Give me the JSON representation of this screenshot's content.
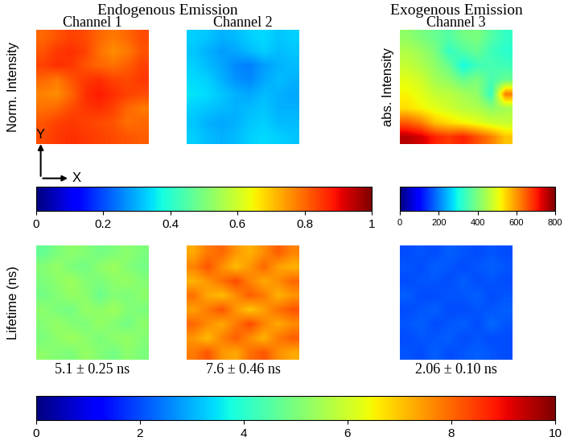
{
  "headers": [
    "Endogenous Emission",
    "Exogenous Emission"
  ],
  "chart_data": [
    {
      "type": "heatmap",
      "title": "Channel 1",
      "ylabel": "Norm. Intensity",
      "axis_arrows": [
        "X",
        "Y"
      ],
      "tick_labels": false,
      "clim": [
        0,
        1
      ],
      "cticks": [
        0,
        0.2,
        0.4,
        0.6,
        0.8,
        1
      ],
      "cells": [
        [
          0.8,
          0.82,
          0.84,
          0.83,
          0.8,
          0.78,
          0.8,
          0.83
        ],
        [
          0.82,
          0.85,
          0.86,
          0.84,
          0.79,
          0.76,
          0.78,
          0.82
        ],
        [
          0.84,
          0.86,
          0.85,
          0.82,
          0.8,
          0.79,
          0.81,
          0.84
        ],
        [
          0.8,
          0.78,
          0.82,
          0.85,
          0.86,
          0.84,
          0.83,
          0.85
        ],
        [
          0.77,
          0.76,
          0.8,
          0.86,
          0.88,
          0.86,
          0.84,
          0.83
        ],
        [
          0.79,
          0.8,
          0.83,
          0.85,
          0.86,
          0.84,
          0.8,
          0.78
        ],
        [
          0.82,
          0.84,
          0.85,
          0.84,
          0.83,
          0.82,
          0.79,
          0.8
        ],
        [
          0.83,
          0.85,
          0.86,
          0.85,
          0.84,
          0.83,
          0.82,
          0.81
        ]
      ]
    },
    {
      "type": "heatmap",
      "title": "Channel 2",
      "tick_labels": false,
      "clim": [
        0,
        1
      ],
      "cticks": [
        0,
        0.2,
        0.4,
        0.6,
        0.8,
        1
      ],
      "cells": [
        [
          0.33,
          0.32,
          0.3,
          0.31,
          0.33,
          0.34,
          0.32,
          0.33
        ],
        [
          0.32,
          0.3,
          0.28,
          0.29,
          0.31,
          0.33,
          0.31,
          0.32
        ],
        [
          0.33,
          0.31,
          0.29,
          0.26,
          0.25,
          0.28,
          0.3,
          0.31
        ],
        [
          0.34,
          0.33,
          0.3,
          0.27,
          0.26,
          0.29,
          0.31,
          0.3
        ],
        [
          0.35,
          0.34,
          0.32,
          0.3,
          0.29,
          0.31,
          0.3,
          0.29
        ],
        [
          0.33,
          0.32,
          0.31,
          0.3,
          0.31,
          0.32,
          0.3,
          0.3
        ],
        [
          0.32,
          0.3,
          0.29,
          0.3,
          0.32,
          0.33,
          0.31,
          0.31
        ],
        [
          0.33,
          0.31,
          0.3,
          0.31,
          0.33,
          0.34,
          0.33,
          0.32
        ]
      ]
    },
    {
      "type": "heatmap",
      "title": "Channel 3",
      "ylabel": "abs. Intensity",
      "tick_labels": false,
      "clim": [
        0,
        800
      ],
      "cticks": [
        0,
        200,
        400,
        600,
        800
      ],
      "cells": [
        [
          420,
          400,
          380,
          360,
          390,
          400,
          360,
          330
        ],
        [
          450,
          430,
          400,
          330,
          360,
          380,
          340,
          320
        ],
        [
          470,
          450,
          420,
          380,
          300,
          340,
          350,
          340
        ],
        [
          500,
          480,
          440,
          420,
          380,
          400,
          350,
          380
        ],
        [
          520,
          500,
          470,
          460,
          440,
          420,
          330,
          620
        ],
        [
          540,
          520,
          500,
          480,
          460,
          450,
          420,
          440
        ],
        [
          650,
          620,
          560,
          540,
          520,
          500,
          480,
          470
        ],
        [
          760,
          740,
          700,
          680,
          700,
          660,
          620,
          560
        ]
      ]
    },
    {
      "type": "heatmap",
      "ylabel": "Lifetime (ns)",
      "annotation": "5.1 ± 0.25 ns",
      "tick_labels": false,
      "clim": [
        0,
        10
      ],
      "cticks": [
        0,
        2,
        4,
        6,
        8,
        10
      ],
      "cells": [
        [
          4.7,
          5.0,
          5.2,
          5.1,
          4.9,
          5.0,
          5.2,
          5.0
        ],
        [
          5.1,
          5.3,
          5.0,
          4.9,
          5.2,
          5.4,
          5.1,
          4.9
        ],
        [
          5.0,
          5.2,
          5.4,
          5.1,
          5.0,
          5.2,
          5.3,
          5.1
        ],
        [
          4.9,
          5.1,
          5.3,
          5.2,
          4.8,
          5.1,
          5.0,
          5.2
        ],
        [
          5.2,
          5.0,
          4.9,
          5.3,
          5.2,
          5.4,
          5.1,
          5.0
        ],
        [
          5.1,
          5.3,
          5.1,
          5.0,
          5.3,
          5.1,
          4.9,
          5.2
        ],
        [
          5.0,
          5.2,
          5.4,
          5.2,
          5.0,
          5.2,
          5.3,
          5.1
        ],
        [
          5.2,
          5.1,
          5.0,
          5.3,
          5.1,
          4.9,
          5.2,
          5.0
        ]
      ]
    },
    {
      "type": "heatmap",
      "annotation": "7.6 ± 0.46 ns",
      "tick_labels": false,
      "clim": [
        0,
        10
      ],
      "cticks": [
        0,
        2,
        4,
        6,
        8,
        10
      ],
      "cells": [
        [
          7.3,
          7.8,
          8.0,
          7.5,
          7.2,
          7.6,
          8.1,
          7.7
        ],
        [
          7.7,
          8.2,
          7.6,
          7.1,
          7.5,
          8.0,
          7.4,
          7.2
        ],
        [
          7.2,
          7.5,
          7.9,
          8.3,
          7.7,
          7.3,
          7.6,
          8.0
        ],
        [
          7.9,
          7.3,
          7.1,
          7.6,
          8.1,
          7.8,
          7.2,
          7.5
        ],
        [
          7.4,
          7.8,
          8.2,
          7.5,
          7.0,
          7.4,
          7.9,
          8.2
        ],
        [
          8.0,
          7.6,
          7.3,
          7.8,
          8.3,
          7.7,
          7.3,
          7.6
        ],
        [
          7.5,
          7.1,
          7.7,
          8.1,
          7.6,
          7.2,
          7.8,
          8.1
        ],
        [
          7.8,
          8.2,
          7.5,
          7.3,
          7.9,
          8.2,
          7.6,
          7.3
        ]
      ]
    },
    {
      "type": "heatmap",
      "annotation": "2.06 ± 0.10 ns",
      "tick_labels": false,
      "clim": [
        0,
        10
      ],
      "cticks": [
        0,
        2,
        4,
        6,
        8,
        10
      ],
      "cells": [
        [
          2.0,
          2.1,
          2.0,
          2.2,
          2.1,
          2.0,
          2.1,
          2.0
        ],
        [
          2.1,
          2.0,
          2.2,
          2.1,
          2.0,
          2.1,
          2.2,
          2.1
        ],
        [
          2.0,
          2.1,
          2.1,
          2.0,
          2.2,
          2.0,
          2.1,
          2.0
        ],
        [
          2.2,
          2.0,
          2.0,
          2.1,
          2.1,
          2.2,
          2.0,
          2.1
        ],
        [
          2.0,
          2.1,
          2.2,
          2.0,
          2.0,
          2.1,
          2.1,
          2.2
        ],
        [
          2.1,
          2.2,
          2.0,
          2.1,
          2.2,
          2.0,
          2.3,
          2.1
        ],
        [
          2.0,
          2.1,
          2.1,
          2.2,
          2.0,
          2.1,
          2.0,
          2.0
        ],
        [
          2.1,
          2.0,
          2.2,
          2.0,
          2.1,
          2.2,
          2.1,
          2.0
        ]
      ]
    }
  ]
}
